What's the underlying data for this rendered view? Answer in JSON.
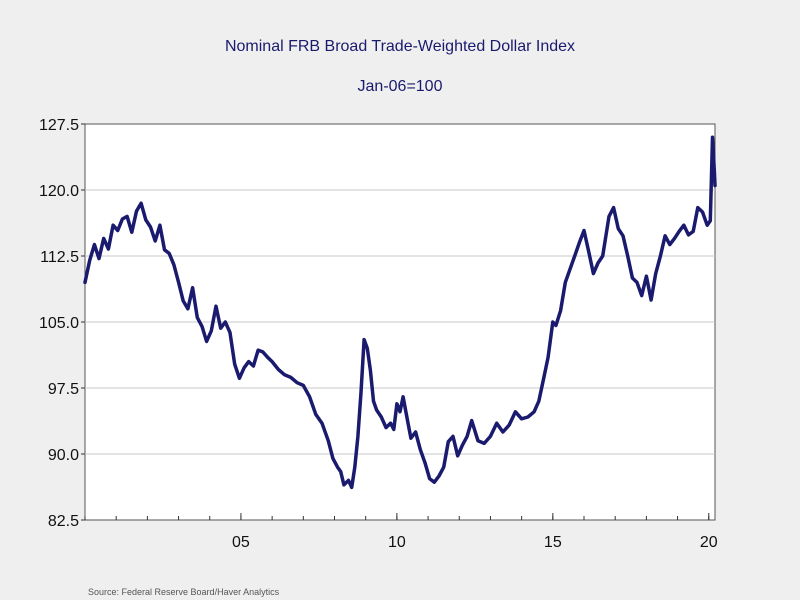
{
  "chart_data": {
    "type": "line",
    "title": "Nominal FRB Broad Trade-Weighted Dollar Index",
    "subtitle": "Jan-06=100",
    "xlabel": "",
    "ylabel": "",
    "xlim": [
      2000.0,
      2020.2
    ],
    "ylim": [
      82.5,
      127.5
    ],
    "yticks": [
      82.5,
      90.0,
      97.5,
      105.0,
      112.5,
      120.0,
      127.5
    ],
    "ytick_labels": [
      "82.5",
      "90.0",
      "97.5",
      "105.0",
      "112.5",
      "120.0",
      "127.5"
    ],
    "xticks": [
      2005,
      2010,
      2015,
      2020
    ],
    "xtick_labels": [
      "05",
      "10",
      "15",
      "20"
    ],
    "grid": true,
    "line_color": "#1a1a6e",
    "series": [
      {
        "name": "Nominal FRB Broad Trade-Weighted Dollar Index",
        "x": [
          2000.0,
          2000.15,
          2000.3,
          2000.45,
          2000.6,
          2000.75,
          2000.9,
          2001.05,
          2001.2,
          2001.35,
          2001.5,
          2001.65,
          2001.8,
          2001.95,
          2002.1,
          2002.25,
          2002.4,
          2002.55,
          2002.7,
          2002.85,
          2003.0,
          2003.15,
          2003.3,
          2003.45,
          2003.6,
          2003.75,
          2003.9,
          2004.05,
          2004.2,
          2004.35,
          2004.5,
          2004.65,
          2004.8,
          2004.95,
          2005.1,
          2005.25,
          2005.4,
          2005.55,
          2005.7,
          2005.85,
          2006.0,
          2006.2,
          2006.4,
          2006.6,
          2006.8,
          2007.0,
          2007.2,
          2007.4,
          2007.6,
          2007.8,
          2007.95,
          2008.1,
          2008.2,
          2008.3,
          2008.45,
          2008.55,
          2008.65,
          2008.75,
          2008.85,
          2008.95,
          2009.05,
          2009.15,
          2009.25,
          2009.35,
          2009.5,
          2009.65,
          2009.8,
          2009.9,
          2010.0,
          2010.1,
          2010.2,
          2010.3,
          2010.45,
          2010.6,
          2010.75,
          2010.9,
          2011.05,
          2011.2,
          2011.35,
          2011.5,
          2011.65,
          2011.8,
          2011.95,
          2012.1,
          2012.25,
          2012.4,
          2012.6,
          2012.8,
          2013.0,
          2013.2,
          2013.4,
          2013.6,
          2013.8,
          2014.0,
          2014.2,
          2014.4,
          2014.55,
          2014.7,
          2014.85,
          2015.0,
          2015.1,
          2015.25,
          2015.4,
          2015.55,
          2015.7,
          2015.85,
          2016.0,
          2016.15,
          2016.3,
          2016.45,
          2016.6,
          2016.8,
          2016.95,
          2017.1,
          2017.25,
          2017.4,
          2017.55,
          2017.7,
          2017.85,
          2018.0,
          2018.15,
          2018.3,
          2018.45,
          2018.6,
          2018.75,
          2018.9,
          2019.05,
          2019.2,
          2019.35,
          2019.5,
          2019.65,
          2019.8,
          2019.95,
          2020.05,
          2020.12,
          2020.18,
          2020.2
        ],
        "values": [
          109.5,
          112.0,
          113.8,
          112.2,
          114.5,
          113.3,
          116.0,
          115.4,
          116.7,
          117.0,
          115.2,
          117.6,
          118.5,
          116.6,
          115.8,
          114.2,
          116.0,
          113.2,
          112.8,
          111.5,
          109.5,
          107.4,
          106.5,
          108.9,
          105.5,
          104.5,
          102.8,
          104.0,
          106.8,
          104.3,
          105.0,
          103.8,
          100.2,
          98.6,
          99.8,
          100.5,
          100.0,
          101.8,
          101.6,
          101.0,
          100.5,
          99.6,
          99.0,
          98.7,
          98.1,
          97.8,
          96.5,
          94.5,
          93.5,
          91.5,
          89.5,
          88.5,
          88.0,
          86.5,
          87.0,
          86.2,
          88.5,
          92.0,
          97.0,
          103.0,
          102.0,
          99.5,
          96.0,
          95.0,
          94.2,
          93.0,
          93.5,
          92.8,
          95.7,
          94.8,
          96.5,
          94.6,
          91.8,
          92.5,
          90.5,
          89.0,
          87.2,
          86.8,
          87.5,
          88.5,
          91.4,
          92.0,
          89.8,
          91.0,
          92.0,
          93.8,
          91.5,
          91.2,
          92.0,
          93.5,
          92.5,
          93.3,
          94.8,
          94.0,
          94.2,
          94.8,
          96.0,
          98.5,
          101.0,
          105.0,
          104.6,
          106.3,
          109.5,
          111.0,
          112.5,
          114.0,
          115.4,
          113.0,
          110.5,
          111.7,
          112.5,
          117.0,
          118.0,
          115.6,
          114.8,
          112.5,
          110.0,
          109.5,
          108.0,
          110.2,
          107.5,
          110.5,
          112.5,
          114.8,
          113.8,
          114.5,
          115.3,
          116.0,
          114.9,
          115.3,
          118.0,
          117.5,
          116.0,
          116.5,
          126.0,
          122.0,
          120.5
        ]
      }
    ]
  },
  "source": "Source:  Federal Reserve Board/Haver Analytics"
}
